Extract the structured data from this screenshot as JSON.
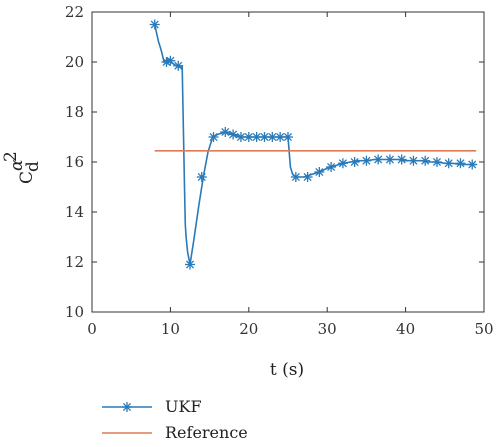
{
  "chart_data": {
    "type": "line",
    "title": "",
    "xlabel": "t (s)",
    "ylabel": "C_d^{α^2}",
    "ylabel_parts": {
      "base": "C",
      "sub": "d",
      "sup": "α",
      "sup2": "2"
    },
    "xlim": [
      0,
      50
    ],
    "ylim": [
      10,
      22
    ],
    "xticks": [
      0,
      10,
      20,
      30,
      40,
      50
    ],
    "yticks": [
      10,
      12,
      14,
      16,
      18,
      20,
      22
    ],
    "grid": false,
    "legend_position": "below",
    "series": [
      {
        "name": "UKF",
        "color": "#2a7ab9",
        "marker": "asterisk",
        "x": [
          8,
          8.5,
          8.8,
          9.2,
          9.6,
          10.0,
          10.5,
          11.0,
          11.5,
          11.8,
          11.9,
          12.0,
          12.2,
          12.5,
          13.0,
          13.6,
          14.2,
          14.8,
          15.4,
          16.0,
          17.0,
          18.0,
          19.0,
          20.0,
          21.0,
          22.0,
          23.0,
          24.0,
          25.0,
          25.3,
          25.6,
          26.0,
          27.0,
          28.0,
          29.0,
          30.0,
          31.0,
          32.0,
          33.0,
          34.0,
          35.0,
          36.0,
          37.0,
          38.0,
          39.0,
          40.0,
          41.0,
          42.0,
          43.0,
          44.0,
          45.0,
          46.0,
          47.0,
          48.0,
          49.0
        ],
        "y": [
          21.5,
          20.8,
          20.5,
          20.0,
          20.1,
          20.0,
          19.9,
          19.8,
          19.8,
          15.0,
          13.5,
          13.0,
          12.4,
          11.9,
          12.9,
          14.2,
          15.4,
          16.4,
          17.0,
          17.1,
          17.2,
          17.1,
          17.0,
          17.0,
          17.0,
          17.0,
          17.0,
          17.0,
          17.0,
          15.8,
          15.5,
          15.4,
          15.4,
          15.5,
          15.6,
          15.75,
          15.85,
          15.95,
          16.0,
          16.05,
          16.05,
          16.1,
          16.1,
          16.1,
          16.1,
          16.05,
          16.05,
          16.05,
          16.0,
          16.0,
          15.95,
          15.95,
          15.9,
          15.9,
          15.9
        ],
        "marker_x": [
          8,
          9.5,
          10.0,
          11.0,
          12.5,
          14.0,
          15.5,
          17.0,
          18.0,
          19.0,
          20.0,
          21.0,
          22.0,
          23.0,
          24.0,
          25.0,
          26.0,
          27.5,
          29.0,
          30.5,
          32.0,
          33.5,
          35.0,
          36.5,
          38.0,
          39.5,
          41.0,
          42.5,
          44.0,
          45.5,
          47.0,
          48.5
        ],
        "marker_y": [
          21.5,
          20.0,
          20.05,
          19.85,
          11.9,
          15.4,
          17.0,
          17.2,
          17.1,
          17.0,
          17.0,
          17.0,
          17.0,
          17.0,
          17.0,
          17.0,
          15.4,
          15.4,
          15.6,
          15.8,
          15.95,
          16.0,
          16.05,
          16.1,
          16.1,
          16.1,
          16.05,
          16.05,
          16.0,
          15.95,
          15.95,
          15.9
        ]
      },
      {
        "name": "Reference",
        "color": "#e07b54",
        "marker": "none",
        "x": [
          8,
          49
        ],
        "y": [
          16.45,
          16.45
        ]
      }
    ]
  }
}
